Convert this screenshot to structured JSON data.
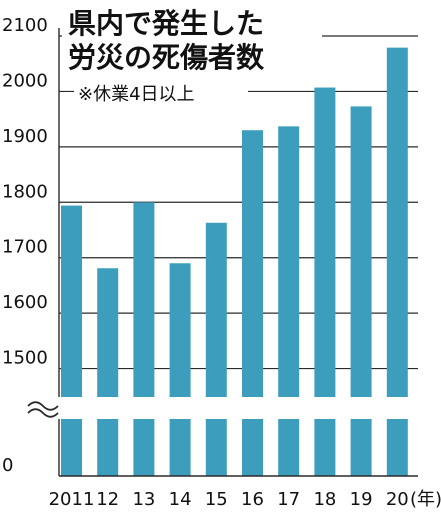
{
  "chart_data": {
    "type": "bar",
    "title": "県内で発生した労災の死傷者数",
    "title_lines": [
      "県内で発生した",
      "労災の死傷者数"
    ],
    "note": "※休業4日以上",
    "unit": "(年)",
    "categories": [
      "2011",
      "12",
      "13",
      "14",
      "15",
      "16",
      "17",
      "18",
      "19",
      "20"
    ],
    "values": [
      1794,
      1681,
      1800,
      1690,
      1763,
      1930,
      1937,
      2007,
      1973,
      2079
    ],
    "y_ticks": [
      "2100",
      "2000",
      "1900",
      "1800",
      "1700",
      "1600",
      "1500",
      "0"
    ],
    "ylim": [
      1400,
      2100
    ],
    "y_axis_break": true,
    "grid": true,
    "colors": {
      "bar": "#3d9dbd",
      "grid": "#2a2a2a",
      "text": "#111111"
    }
  }
}
